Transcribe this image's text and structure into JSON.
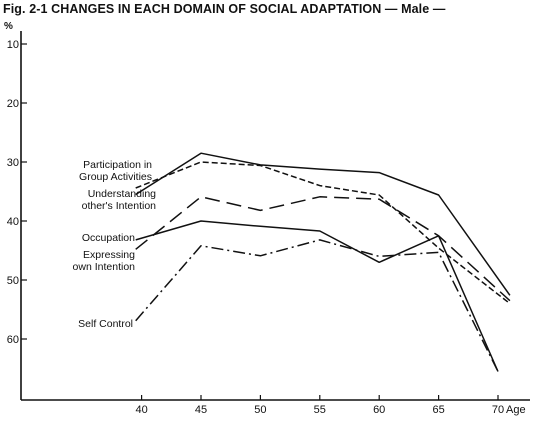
{
  "figure": {
    "title": "Fig. 2-1  CHANGES IN EACH DOMAIN OF SOCIAL ADAPTATION — Male —"
  },
  "chart_data": {
    "type": "line",
    "title": "Fig. 2-1  CHANGES IN EACH DOMAIN OF SOCIAL ADAPTATION — Male —",
    "ylabel": "%",
    "xlabel": "Age",
    "y_inverted": true,
    "ylim": [
      10,
      70
    ],
    "xlim": [
      35,
      72
    ],
    "y_ticks": [
      10,
      20,
      30,
      40,
      50,
      60
    ],
    "x_ticks": [
      40,
      45,
      50,
      55,
      60,
      65,
      70
    ],
    "x_tick_labels": [
      "40",
      "45",
      "50",
      "55",
      "60",
      "65",
      "70"
    ],
    "grid": false,
    "legend": "inline labels at left of each line",
    "series": [
      {
        "name": "Participation in Group Activities",
        "label_lines": [
          "Participation in",
          "Group Activities"
        ],
        "style": "solid",
        "x": [
          39.5,
          45,
          50,
          55,
          60,
          65,
          71
        ],
        "y": [
          35.5,
          28.5,
          30.5,
          31.2,
          31.8,
          35.6,
          52.6
        ]
      },
      {
        "name": "Understanding other's Intention",
        "label_lines": [
          "Understanding",
          "other's Intention"
        ],
        "style": "short-dash",
        "x": [
          39.5,
          45,
          50,
          55,
          60,
          65,
          71
        ],
        "y": [
          34.4,
          30.0,
          30.6,
          34.0,
          35.6,
          44.6,
          54.0
        ]
      },
      {
        "name": "Occupation",
        "label_lines": [
          "Occupation"
        ],
        "style": "solid",
        "x": [
          39.5,
          45,
          50,
          55,
          60,
          65,
          70
        ],
        "y": [
          43.2,
          40.0,
          40.9,
          41.7,
          47.0,
          42.5,
          65.5
        ]
      },
      {
        "name": "Expressing own Intention",
        "label_lines": [
          "Expressing",
          "own Intention"
        ],
        "style": "long-dash",
        "x": [
          39.5,
          45,
          50,
          55,
          60,
          65,
          71
        ],
        "y": [
          44.8,
          35.9,
          38.2,
          35.9,
          36.3,
          42.5,
          53.5
        ]
      },
      {
        "name": "Self Control",
        "label_lines": [
          "Self Control"
        ],
        "style": "dash-dot",
        "x": [
          39.5,
          45,
          50,
          55,
          60,
          65,
          70
        ],
        "y": [
          56.9,
          44.2,
          45.9,
          43.2,
          46.0,
          45.3,
          65.5
        ]
      }
    ]
  }
}
